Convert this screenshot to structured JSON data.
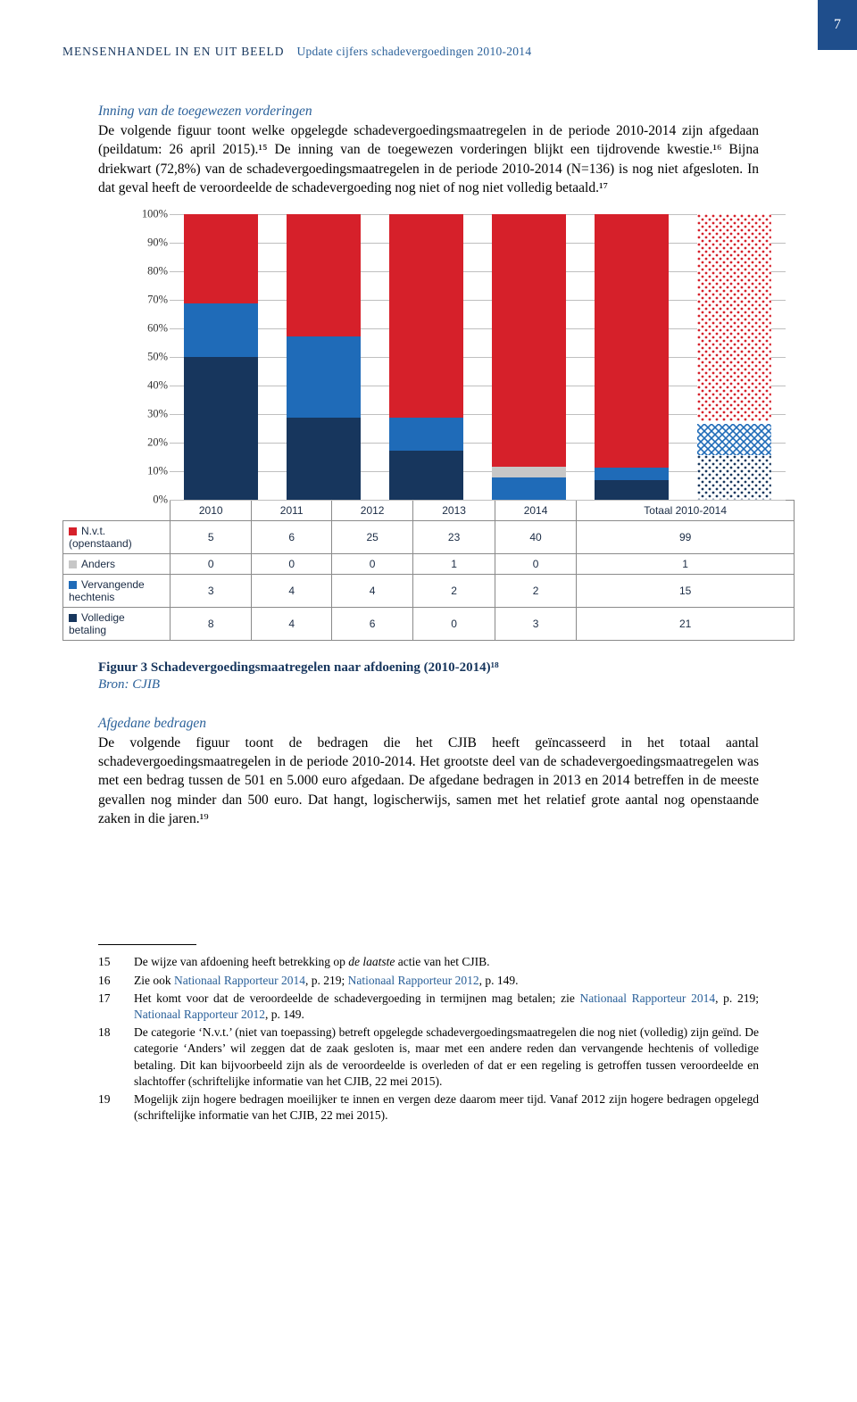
{
  "page_number": "7",
  "running_head": {
    "left": "MENSENHANDEL IN EN UIT BEELD",
    "right": "Update cijfers schadevergoedingen 2010-2014"
  },
  "section1_heading": "Inning van de toegewezen vorderingen",
  "section1_text": "De volgende figuur toont welke opgelegde schadevergoedingsmaatregelen in de periode 2010-2014 zijn afgedaan (peildatum: 26 april 2015).¹⁵ De inning van de toegewezen vorderingen blijkt een tijdrovende kwestie.¹⁶ Bijna driekwart (72,8%) van de schadevergoedingsmaatregelen in de periode 2010-2014 (N=136) is nog niet afgesloten. In dat geval heeft de veroordeelde de schadevergoeding nog niet of nog niet volledig betaald.¹⁷",
  "chart": {
    "type": "stacked-bar-100",
    "ylim": [
      0,
      100
    ],
    "ytick_step": 10,
    "ytick_labels": [
      "0%",
      "10%",
      "20%",
      "30%",
      "40%",
      "50%",
      "60%",
      "70%",
      "80%",
      "90%",
      "100%"
    ],
    "grid_color": "#bfbfbf",
    "categories": [
      "2010",
      "2011",
      "2012",
      "2013",
      "2014",
      "Totaal 2010-2014"
    ],
    "series": [
      {
        "key": "volledige_betaling",
        "label": "Volledige betaling",
        "color": "#17365d",
        "pattern": "solid",
        "values": [
          8,
          4,
          6,
          0,
          3,
          21
        ]
      },
      {
        "key": "vervangende_hechtenis",
        "label": "Vervangende hechtenis",
        "color": "#1f6bb8",
        "pattern": "solid",
        "values": [
          3,
          4,
          4,
          2,
          2,
          15
        ]
      },
      {
        "key": "anders",
        "label": "Anders",
        "color": "#c7c7c7",
        "pattern": "solid",
        "values": [
          0,
          0,
          0,
          1,
          0,
          1
        ]
      },
      {
        "key": "nvt_openstaand",
        "label": "N.v.t. (openstaand)",
        "color": "#d6202a",
        "pattern": "solid",
        "values": [
          5,
          6,
          25,
          23,
          40,
          99
        ]
      }
    ],
    "last_column_patterned": true,
    "pattern_colors": {
      "volledige_betaling": {
        "fg": "#17365d",
        "bg": "#ffffff"
      },
      "vervangende_hechtenis": {
        "fg": "#1f6bb8",
        "bg": "#ffffff"
      },
      "anders": {
        "fg": "#8a8a8a",
        "bg": "#ffffff"
      },
      "nvt_openstaand": {
        "fg": "#d6202a",
        "bg": "#ffffff"
      }
    },
    "legend_style": {
      "nvt_openstaand": "#d6202a",
      "anders": "#c7c7c7",
      "vervangende_hechtenis": "#1f6bb8",
      "volledige_betaling": "#17365d"
    }
  },
  "figure_caption_bold": "Figuur 3  Schadevergoedingsmaatregelen naar afdoening (2010-2014)¹⁸",
  "figure_source": "Bron: CJIB",
  "section2_heading": "Afgedane bedragen",
  "section2_text": "De volgende figuur toont de bedragen die het CJIB heeft geïncasseerd in het totaal aantal schadevergoedingsmaatregelen in de periode 2010-2014. Het grootste deel van de schadevergoedingsmaatregelen was met een bedrag tussen de 501 en 5.000 euro afgedaan. De afgedane bedragen in 2013 en 2014 betreffen in de meeste gevallen nog minder dan 500 euro. Dat hangt, logischerwijs, samen met het relatief grote aantal nog openstaande zaken in die jaren.¹⁹",
  "footnotes": [
    {
      "num": "15",
      "html": "De wijze van afdoening heeft betrekking op <i>de laatste</i> actie van het CJIB."
    },
    {
      "num": "16",
      "html": "Zie ook <span class='link'>Nationaal Rapporteur 2014</span>, p. 219; <span class='link'>Nationaal Rapporteur 2012</span>, p. 149."
    },
    {
      "num": "17",
      "html": "Het komt voor dat de veroordeelde de schadevergoeding in termijnen mag betalen; zie <span class='link'>Nationaal Rapporteur 2014</span>, p. 219; <span class='link'>Nationaal Rapporteur 2012</span>, p. 149."
    },
    {
      "num": "18",
      "html": "De categorie ‘N.v.t.’ (niet van toepassing) betreft opgelegde schadevergoedingsmaatregelen die nog niet (volledig) zijn geïnd. De categorie ‘Anders’ wil zeggen dat de zaak gesloten is, maar met een andere reden dan vervangende hechtenis of volledige betaling. Dit kan bijvoorbeeld zijn als de veroordeelde is overleden of dat er een regeling is getroffen tussen veroordeelde en slachtoffer (schriftelijke informatie van het CJIB, 22 mei 2015)."
    },
    {
      "num": "19",
      "html": "Mogelijk zijn hogere bedragen moeilijker te innen en vergen deze daarom meer tijd. Vanaf 2012 zijn hogere bedragen opgelegd (schriftelijke informatie van het CJIB, 22 mei 2015)."
    }
  ]
}
